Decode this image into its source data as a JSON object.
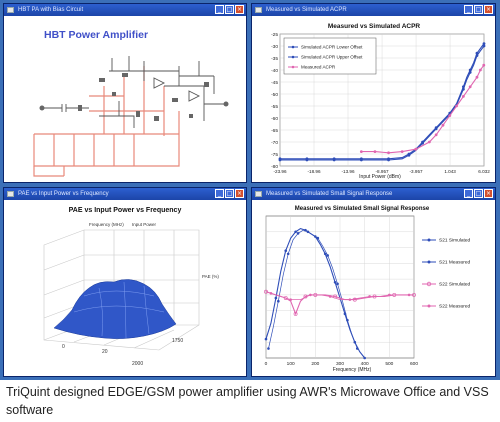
{
  "windows": {
    "schematic": {
      "title_bar": "HBT PA with Bias Circuit",
      "heading": "HBT Power Amplifier"
    },
    "acpr": {
      "title_bar": "Measured vs Simulated ACPR"
    },
    "pae": {
      "title_bar": "PAE vs Input Power vs Frequency"
    },
    "ssr": {
      "title_bar": "Measured vs Simulated Small Signal Response"
    }
  },
  "colors": {
    "desktop": "#3b6fb8",
    "titlebar": "#1c45a8",
    "simulated": "#2e4db8",
    "measured": "#e066b0"
  },
  "caption": "TriQuint designed EDGE/GSM power amplifier using AWR's Microwave Office and VSS software",
  "chart_data": [
    {
      "type": "line",
      "title": "Measured vs Simulated ACPR",
      "xlabel": "Input Power (dBm)",
      "ylabel": "",
      "x_ticks": [
        "-23.96",
        "-18.96",
        "-13.96",
        "-8.957",
        "-3.957",
        "1.043",
        "6.032"
      ],
      "y_ticks": [
        "-25",
        "-30",
        "-35",
        "-40",
        "-45",
        "-50",
        "-55",
        "-60",
        "-65",
        "-70",
        "-75",
        "-80"
      ],
      "xlim": [
        -23.96,
        6.032
      ],
      "ylim": [
        -80,
        -25
      ],
      "grid": true,
      "legend": "top-left",
      "series": [
        {
          "name": "Simulated ACPR Lower Offset",
          "color": "#2e4db8",
          "x": [
            -23.96,
            -22,
            -20,
            -18,
            -16,
            -14,
            -12,
            -10,
            -8,
            -6,
            -5,
            -4,
            -3,
            -2,
            -1,
            0,
            1,
            2,
            3,
            3.5,
            4,
            4.5,
            5,
            5.5,
            6.032
          ],
          "y": [
            -77,
            -77,
            -77,
            -77,
            -77,
            -77,
            -77,
            -77,
            -77,
            -76.5,
            -75,
            -73,
            -70,
            -67,
            -64,
            -61,
            -58,
            -54,
            -47,
            -43,
            -40,
            -37,
            -33,
            -31,
            -29
          ]
        },
        {
          "name": "Simulated ACPR Upper Offset",
          "color": "#2e4db8",
          "x": [
            -23.96,
            -22,
            -20,
            -18,
            -16,
            -14,
            -12,
            -10,
            -8,
            -6,
            -5,
            -4,
            -3,
            -2,
            -1,
            0,
            1,
            2,
            3,
            3.5,
            4,
            4.5,
            5,
            5.5,
            6.032
          ],
          "y": [
            -77.5,
            -77.5,
            -77.5,
            -77.5,
            -77.5,
            -77.5,
            -77.5,
            -77.5,
            -77.5,
            -77,
            -75.5,
            -73.5,
            -70.5,
            -67.5,
            -64.5,
            -61.5,
            -58.5,
            -54.5,
            -48,
            -44,
            -41,
            -38,
            -34,
            -32,
            -30
          ]
        },
        {
          "name": "Measured ACPR",
          "color": "#e066b0",
          "x": [
            -12,
            -10,
            -8,
            -6,
            -4,
            -2,
            -1,
            0,
            1,
            2,
            3,
            4,
            5,
            5.5,
            6
          ],
          "y": [
            -74,
            -74,
            -74.5,
            -74,
            -73,
            -70,
            -67,
            -63,
            -59,
            -55,
            -51,
            -47,
            -43,
            -40,
            -38
          ]
        }
      ]
    },
    {
      "type": "area",
      "title": "PAE vs Input Power vs Frequency",
      "xlabel": "",
      "ylabel": "",
      "axis_labels": [
        "Frequency (MHz)",
        "Input Power",
        "PAE (%)"
      ],
      "x_ticks": [
        "0",
        "20",
        "2000"
      ],
      "y_ticks": [
        "1750"
      ],
      "grid": true
    },
    {
      "type": "line",
      "title": "Measured vs Simulated Small Signal Response",
      "xlabel": "Frequency (MHz)",
      "ylabel": "",
      "x_ticks": [
        "0",
        "100",
        "200",
        "300",
        "400",
        "500",
        "600"
      ],
      "xlim": [
        0,
        600
      ],
      "ylim": [
        -50,
        40
      ],
      "grid": true,
      "legend": "right",
      "series": [
        {
          "name": "S21 Simulated",
          "color": "#2e4db8",
          "x": [
            0,
            20,
            40,
            60,
            80,
            100,
            120,
            140,
            160,
            180,
            200,
            220,
            240,
            260,
            280,
            300,
            320,
            340,
            360,
            380,
            400
          ],
          "y": [
            -38,
            -28,
            -12,
            5,
            18,
            26,
            30,
            32,
            31,
            29,
            27,
            22,
            16,
            8,
            -2,
            -12,
            -22,
            -32,
            -40,
            -46,
            -50
          ]
        },
        {
          "name": "S21 Measured",
          "color": "#2e4db8",
          "x": [
            10,
            30,
            50,
            70,
            90,
            110,
            130,
            150,
            170,
            190,
            210,
            230,
            250,
            270,
            290,
            310,
            330,
            350,
            370
          ],
          "y": [
            -44,
            -30,
            -14,
            3,
            16,
            25,
            29,
            31,
            30,
            28,
            26,
            21,
            15,
            7,
            -3,
            -14,
            -26,
            -36,
            -44
          ]
        },
        {
          "name": "S22 Simulated",
          "color": "#e066b0",
          "x": [
            0,
            40,
            80,
            100,
            120,
            140,
            160,
            180,
            200,
            240,
            280,
            320,
            360,
            400,
            440,
            480,
            520,
            560,
            600
          ],
          "y": [
            -8,
            -10,
            -12,
            -14,
            -22,
            -14,
            -11,
            -10,
            -10,
            -10,
            -11,
            -13,
            -13,
            -12,
            -11,
            -11,
            -10,
            -10,
            -10
          ]
        },
        {
          "name": "S22 Measured",
          "color": "#e066b0",
          "x": [
            20,
            60,
            100,
            140,
            180,
            220,
            260,
            300,
            340,
            380,
            420,
            460,
            500,
            540,
            580
          ],
          "y": [
            -9,
            -11,
            -13,
            -13,
            -10,
            -10,
            -11,
            -13,
            -13,
            -12,
            -11,
            -11,
            -10,
            -10,
            -10
          ]
        }
      ]
    }
  ]
}
